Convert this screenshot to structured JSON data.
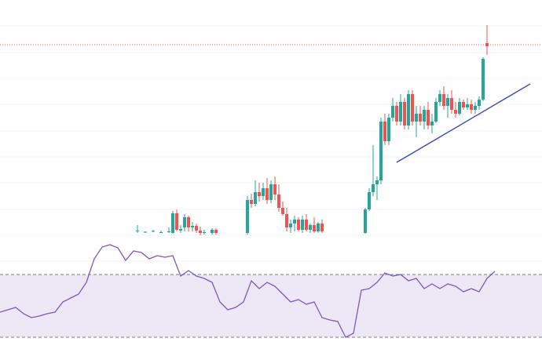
{
  "chart_data": [
    {
      "type": "candlestick",
      "up_color": "#26a69a",
      "down_color": "#ef5350",
      "xlim": [
        -34,
        104
      ],
      "ylim": [
        0,
        445
      ],
      "ygrid": [
        412,
        378,
        345,
        312,
        278,
        245,
        212,
        178,
        145,
        112
      ],
      "price_line": 388,
      "price_line_color": "#ef5350",
      "trendline": {
        "x": [
          67,
          101
        ],
        "y": [
          238,
          338
        ],
        "color": "#3f51b5"
      },
      "x": [
        1,
        3,
        5,
        7,
        9,
        10,
        11,
        12,
        13,
        14,
        15,
        16,
        17,
        18,
        20,
        21,
        29,
        30,
        31,
        32,
        33,
        34,
        35,
        36,
        37,
        38,
        39,
        40,
        41,
        42,
        43,
        44,
        45,
        46,
        47,
        48,
        59,
        60,
        61,
        62,
        63,
        64,
        65,
        66,
        67,
        68,
        69,
        70,
        71,
        72,
        73,
        74,
        75,
        76,
        77,
        78,
        79,
        80,
        81,
        82,
        83,
        84,
        85,
        86,
        87,
        88,
        89,
        90
      ],
      "open": [
        150,
        149,
        150,
        149,
        149,
        148,
        173,
        151,
        155,
        168,
        155,
        157,
        151,
        148,
        148,
        152,
        148,
        190,
        185,
        200,
        195,
        205,
        190,
        210,
        197,
        180,
        172,
        155,
        160,
        165,
        152,
        165,
        152,
        158,
        150,
        160,
        148,
        178,
        200,
        210,
        215,
        290,
        265,
        295,
        310,
        290,
        315,
        285,
        325,
        290,
        300,
        290,
        305,
        285,
        290,
        315,
        325,
        310,
        320,
        305,
        300,
        315,
        308,
        312,
        305,
        310,
        318,
        390
      ],
      "high": [
        158,
        150,
        152,
        151,
        155,
        176,
        178,
        158,
        172,
        170,
        162,
        160,
        156,
        152,
        154,
        154,
        195,
        198,
        215,
        212,
        212,
        218,
        215,
        220,
        210,
        188,
        180,
        165,
        170,
        168,
        170,
        172,
        160,
        168,
        162,
        165,
        180,
        205,
        260,
        220,
        295,
        300,
        300,
        320,
        315,
        325,
        320,
        330,
        330,
        310,
        310,
        310,
        315,
        300,
        320,
        330,
        335,
        325,
        330,
        315,
        320,
        318,
        320,
        318,
        315,
        322,
        372,
        413
      ],
      "low": [
        148,
        148,
        149,
        148,
        148,
        147,
        150,
        148,
        150,
        150,
        150,
        148,
        145,
        146,
        146,
        146,
        146,
        180,
        182,
        188,
        190,
        185,
        186,
        190,
        175,
        170,
        150,
        148,
        150,
        150,
        148,
        150,
        148,
        148,
        148,
        148,
        147,
        176,
        195,
        190,
        210,
        260,
        260,
        290,
        285,
        285,
        280,
        280,
        285,
        270,
        285,
        280,
        280,
        275,
        288,
        310,
        305,
        295,
        300,
        295,
        298,
        305,
        305,
        300,
        300,
        305,
        316,
        375
      ],
      "close": [
        151,
        149.5,
        150.5,
        149,
        150,
        173,
        152,
        153,
        168,
        155,
        157,
        151,
        148,
        149,
        152,
        148,
        190,
        185,
        200,
        195,
        205,
        190,
        210,
        197,
        180,
        172,
        155,
        160,
        165,
        152,
        165,
        152,
        158,
        150,
        160,
        150,
        178,
        200,
        210,
        215,
        290,
        265,
        295,
        310,
        290,
        315,
        285,
        325,
        290,
        300,
        290,
        305,
        285,
        290,
        315,
        325,
        310,
        320,
        305,
        300,
        315,
        308,
        312,
        305,
        310,
        318,
        370,
        386
      ]
    },
    {
      "type": "line",
      "xlim": [
        -34,
        104
      ],
      "ylim": [
        22.5,
        95
      ],
      "band": [
        30,
        70
      ],
      "band_color": "#ede7f6",
      "color": "#7e57c2",
      "x": [
        -34,
        -32,
        -30,
        -28,
        -26,
        -24,
        -22,
        -20,
        -18,
        -16,
        -14,
        -12,
        -10,
        -8,
        -6,
        -4,
        -2,
        0,
        2,
        4,
        6,
        8,
        10,
        12,
        14,
        16,
        18,
        20,
        22,
        24,
        26,
        28,
        30,
        32,
        34,
        36,
        38,
        40,
        42,
        44,
        46,
        48,
        50,
        52,
        54,
        56,
        58,
        60,
        62,
        64,
        66,
        68,
        70,
        72,
        74,
        76,
        78,
        80,
        82,
        84,
        86,
        88,
        90,
        92
      ],
      "values": [
        46,
        47.5,
        49,
        45,
        42.5,
        43.5,
        45,
        46,
        52.5,
        55,
        57.5,
        65,
        80,
        87.5,
        89,
        87,
        79,
        85,
        84,
        80,
        82,
        81,
        82,
        69,
        72.5,
        69,
        67.5,
        65,
        52.5,
        47.5,
        49,
        52.5,
        66,
        61,
        65,
        62.5,
        57.5,
        52.5,
        54,
        51,
        52.5,
        42.5,
        41,
        40,
        30,
        32.5,
        60,
        61,
        65,
        71,
        69,
        70,
        66,
        67.5,
        61,
        64,
        61,
        64,
        62.5,
        59,
        61,
        59,
        67.5,
        72
      ]
    }
  ]
}
